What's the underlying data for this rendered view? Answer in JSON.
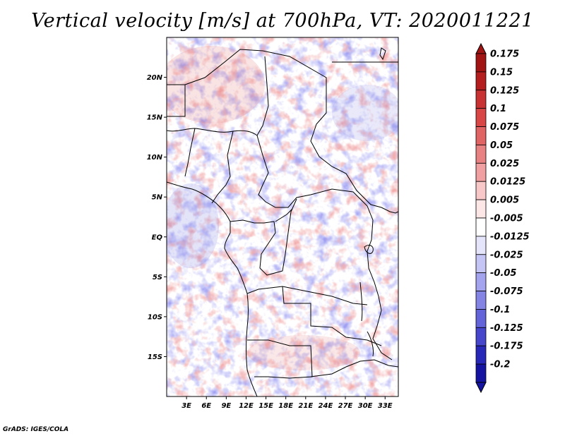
{
  "title": "Vertical velocity [m/s] at 700hPa, VT: 2020011221",
  "credit": "GrADS: IGES/COLA",
  "map": {
    "lon_range": [
      0,
      35
    ],
    "lat_range": [
      -20,
      25
    ],
    "lat_ticks": [
      {
        "value": 20,
        "label": "20N"
      },
      {
        "value": 15,
        "label": "15N"
      },
      {
        "value": 10,
        "label": "10N"
      },
      {
        "value": 5,
        "label": "5N"
      },
      {
        "value": 0,
        "label": "EQ"
      },
      {
        "value": -5,
        "label": "5S"
      },
      {
        "value": -10,
        "label": "10S"
      },
      {
        "value": -15,
        "label": "15S"
      }
    ],
    "lon_ticks": [
      {
        "value": 3,
        "label": "3E"
      },
      {
        "value": 6,
        "label": "6E"
      },
      {
        "value": 9,
        "label": "9E"
      },
      {
        "value": 12,
        "label": "12E"
      },
      {
        "value": 15,
        "label": "15E"
      },
      {
        "value": 18,
        "label": "18E"
      },
      {
        "value": 21,
        "label": "21E"
      },
      {
        "value": 24,
        "label": "24E"
      },
      {
        "value": 27,
        "label": "27E"
      },
      {
        "value": 30,
        "label": "30E"
      },
      {
        "value": 33,
        "label": "33E"
      }
    ]
  },
  "colorbar": {
    "levels": [
      {
        "label": "0.175",
        "color": "#a01414"
      },
      {
        "label": "0.15",
        "color": "#b41e1e"
      },
      {
        "label": "0.125",
        "color": "#c83232"
      },
      {
        "label": "0.1",
        "color": "#d84646"
      },
      {
        "label": "0.075",
        "color": "#e06464"
      },
      {
        "label": "0.05",
        "color": "#e88282"
      },
      {
        "label": "0.025",
        "color": "#f0a0a0"
      },
      {
        "label": "0.0125",
        "color": "#f8c8c8"
      },
      {
        "label": "0.005",
        "color": "#fde6e6"
      },
      {
        "label": "-0.005",
        "color": "#ffffff"
      },
      {
        "label": "-0.0125",
        "color": "#e4e4fa"
      },
      {
        "label": "-0.025",
        "color": "#c4c4f5"
      },
      {
        "label": "-0.05",
        "color": "#a4a4ee"
      },
      {
        "label": "-0.075",
        "color": "#8484e4"
      },
      {
        "label": "-0.1",
        "color": "#6464da"
      },
      {
        "label": "-0.125",
        "color": "#4646cc"
      },
      {
        "label": "-0.175",
        "color": "#2828b8"
      },
      {
        "label": "-0.2",
        "color": "#1414a0"
      }
    ],
    "top_arrow_color": "#a01414",
    "bottom_arrow_color": "#1414a0"
  }
}
